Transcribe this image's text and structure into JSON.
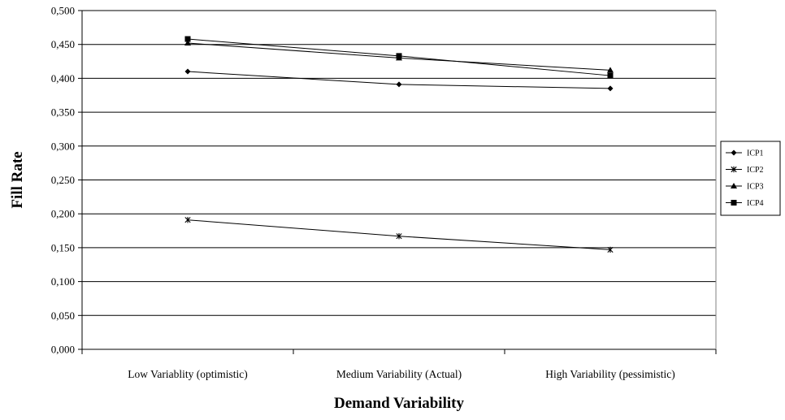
{
  "chart_data": {
    "type": "line",
    "title": "",
    "xlabel": "Demand Variability",
    "ylabel": "Fill Rate",
    "categories": [
      "Low Variablity (optimistic)",
      "Medium Variability (Actual)",
      "High Variability (pessimistic)"
    ],
    "ylim": [
      0,
      0.5
    ],
    "yticks": [
      "0,000",
      "0,050",
      "0,100",
      "0,150",
      "0,200",
      "0,250",
      "0,300",
      "0,350",
      "0,400",
      "0,450",
      "0,500"
    ],
    "grid": "horizontal",
    "legend_position": "right",
    "series": [
      {
        "name": "ICP1",
        "marker": "diamond",
        "values": [
          0.41,
          0.391,
          0.385
        ]
      },
      {
        "name": "ICP2",
        "marker": "star",
        "values": [
          0.191,
          0.167,
          0.147
        ]
      },
      {
        "name": "ICP3",
        "marker": "triangle",
        "values": [
          0.452,
          0.43,
          0.412
        ]
      },
      {
        "name": "ICP4",
        "marker": "square",
        "values": [
          0.458,
          0.433,
          0.404
        ]
      }
    ],
    "line_color": "#000000",
    "grid_color": "#000000"
  }
}
